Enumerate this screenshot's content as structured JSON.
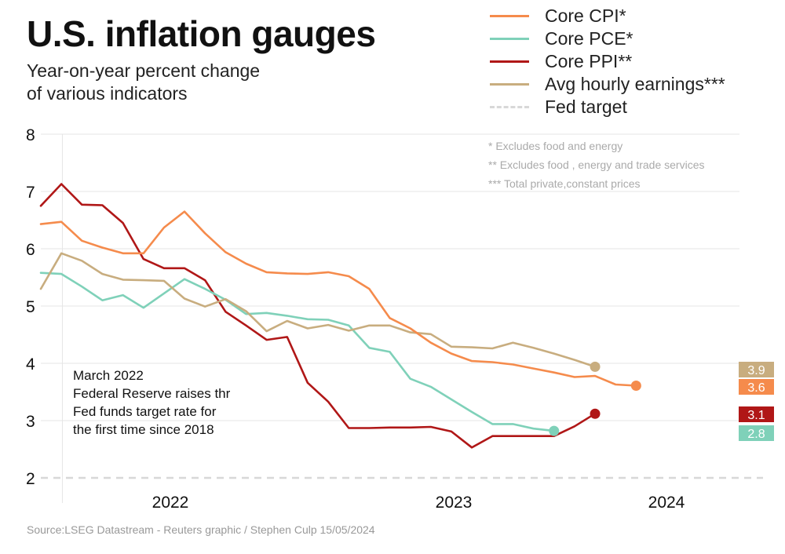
{
  "title": "U.S. inflation gauges",
  "subtitle_line1": "Year-on-year percent change",
  "subtitle_line2": "of various indicators",
  "source": "Source:LSEG Datastream - Reuters graphic / Stephen Culp 15/05/2024",
  "chart_data": {
    "type": "line",
    "title": "U.S. inflation gauges",
    "subtitle": "Year-on-year percent change of various indicators",
    "xlabel": "",
    "ylabel": "",
    "ylim": [
      2,
      8
    ],
    "yticks": [
      "2",
      "3",
      "4",
      "5",
      "6",
      "7",
      "8"
    ],
    "xticks": [
      "2022",
      "2023",
      "2024"
    ],
    "x_start": "2021-09",
    "x_end": "2024-04",
    "fed_target": 2,
    "series": [
      {
        "name": "Core CPI*",
        "color": "#f58b4c",
        "start_month_index": 0,
        "values": [
          6.43,
          6.47,
          6.14,
          6.02,
          5.92,
          5.92,
          6.37,
          6.65,
          6.27,
          5.94,
          5.74,
          5.59,
          5.57,
          5.56,
          5.59,
          5.52,
          5.3,
          4.79,
          4.61,
          4.36,
          4.17,
          4.04,
          4.02,
          3.98,
          3.91,
          3.84,
          3.76,
          3.78,
          3.63,
          3.61
        ],
        "end_label": "3.6"
      },
      {
        "name": "Core PCE*",
        "color": "#7fd1b9",
        "start_month_index": 0,
        "values": [
          5.58,
          5.56,
          5.34,
          5.1,
          5.19,
          4.97,
          5.22,
          5.47,
          5.3,
          5.11,
          4.86,
          4.88,
          4.83,
          4.77,
          4.76,
          4.66,
          4.27,
          4.2,
          3.73,
          3.59,
          3.37,
          3.15,
          2.94,
          2.94,
          2.86,
          2.82
        ],
        "end_label": "2.8"
      },
      {
        "name": "Core PPI**",
        "color": "#b01717",
        "start_month_index": 0,
        "values": [
          6.75,
          7.13,
          6.77,
          6.76,
          6.45,
          5.82,
          5.66,
          5.66,
          5.45,
          4.9,
          4.66,
          4.41,
          4.46,
          3.66,
          3.33,
          2.87,
          2.87,
          2.88,
          2.88,
          2.89,
          2.81,
          2.53,
          2.73,
          2.73,
          2.73,
          2.73,
          2.9,
          3.12
        ],
        "end_label": "3.1"
      },
      {
        "name": "Avg hourly earnings***",
        "color": "#c8ad7f",
        "start_month_index": 0,
        "values": [
          5.3,
          5.92,
          5.79,
          5.56,
          5.46,
          5.45,
          5.44,
          5.13,
          4.99,
          5.12,
          4.91,
          4.56,
          4.74,
          4.61,
          4.67,
          4.57,
          4.66,
          4.66,
          4.54,
          4.51,
          4.29,
          4.28,
          4.26,
          4.36,
          4.27,
          4.17,
          4.06,
          3.94
        ],
        "end_label": "3.9"
      }
    ],
    "legend": [
      "Core CPI*",
      "Core PCE*",
      "Core PPI**",
      "Avg hourly earnings***",
      "Fed target"
    ],
    "notes": [
      "* Excludes food and energy",
      "** Excludes food , energy and trade services",
      "*** Total private,constant prices"
    ],
    "annotation_lines": [
      "March 2022",
      "Federal Reserve raises thr",
      "Fed funds target rate for",
      "the first time since 2018"
    ]
  }
}
